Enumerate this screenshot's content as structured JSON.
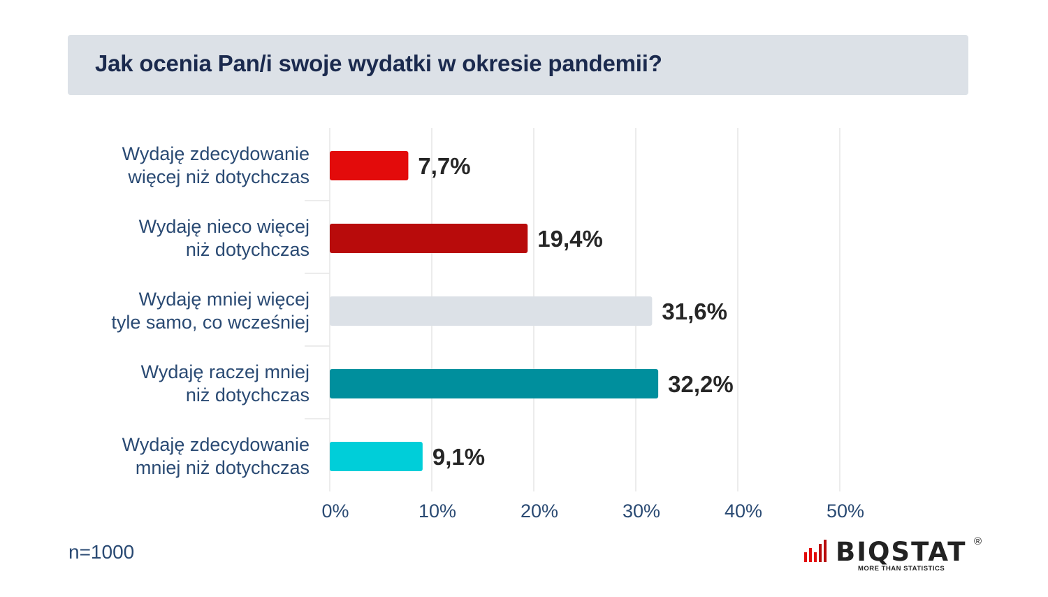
{
  "header": {
    "title": "Jak ocenia Pan/i swoje wydatki w okresie pandemii?"
  },
  "footnote": "n=1000",
  "logo": {
    "name": "BIQSTAT",
    "registered": "®",
    "tagline": "MORE THAN STATISTICS"
  },
  "chart_data": {
    "type": "bar",
    "orientation": "horizontal",
    "title": "Jak ocenia Pan/i swoje wydatki w okresie pandemii?",
    "categories": [
      [
        "Wydaję zdecydowanie",
        "więcej niż dotychczas"
      ],
      [
        "Wydaję nieco więcej",
        "niż dotychczas"
      ],
      [
        "Wydaję mniej więcej",
        "tyle samo, co wcześniej"
      ],
      [
        "Wydaję raczej mniej",
        "niż dotychczas"
      ],
      [
        "Wydaję zdecydowanie",
        "mniej niż dotychczas"
      ]
    ],
    "values": [
      7.7,
      19.4,
      31.6,
      32.2,
      9.1
    ],
    "value_labels": [
      "7,7%",
      "19,4%",
      "31,6%",
      "32,2%",
      "9,1%"
    ],
    "colors": [
      "#e30b0b",
      "#b80b0b",
      "#dce1e7",
      "#008f9d",
      "#00ced9"
    ],
    "xlim": [
      0,
      50
    ],
    "ticks": [
      0,
      10,
      20,
      30,
      40,
      50
    ],
    "tick_labels": [
      "0%",
      "10%",
      "20%",
      "30%",
      "40%",
      "50%"
    ],
    "grid": true,
    "xlabel": "",
    "ylabel": ""
  }
}
